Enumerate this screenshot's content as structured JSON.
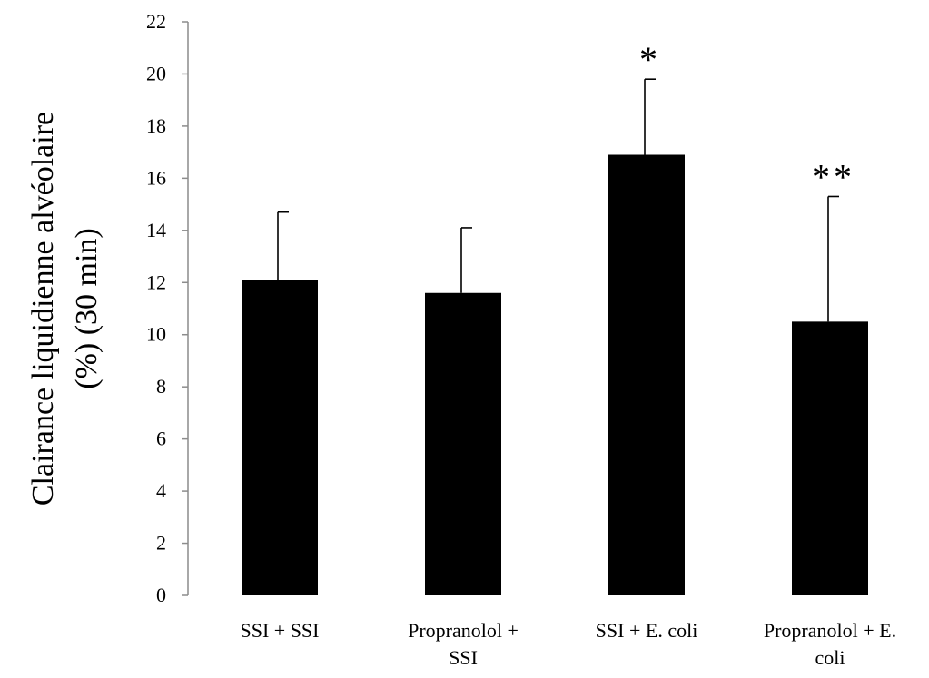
{
  "chart_data": {
    "type": "bar",
    "categories": [
      [
        "SSI + SSI"
      ],
      [
        "Propranolol +",
        "SSI"
      ],
      [
        "SSI + E. coli"
      ],
      [
        "Propranolol + E.",
        "coli"
      ]
    ],
    "values": [
      12.1,
      11.6,
      16.9,
      10.5
    ],
    "errors": [
      2.6,
      2.5,
      2.9,
      4.8
    ],
    "annotations": [
      "",
      "",
      "*",
      "**"
    ],
    "ylabel": [
      "Clairance liquidienne alvéolaire",
      "(%) (30 min)"
    ],
    "ylim": [
      0,
      22
    ],
    "yticks": [
      0,
      2,
      4,
      6,
      8,
      10,
      12,
      14,
      16,
      18,
      20,
      22
    ],
    "bar_color": "#000000",
    "grid": false,
    "legend": "none"
  }
}
